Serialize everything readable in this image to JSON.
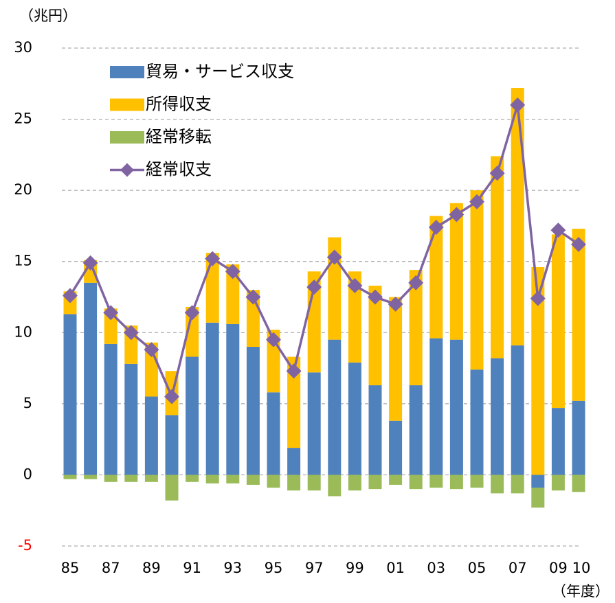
{
  "chart_data": {
    "type": "bar",
    "y_label": "（兆円）",
    "x_label": "（年度）",
    "categories": [
      "85",
      null,
      "87",
      null,
      "89",
      null,
      "91",
      null,
      "93",
      null,
      "95",
      null,
      "97",
      null,
      "99",
      null,
      "01",
      null,
      "03",
      null,
      "05",
      null,
      "07",
      null,
      "09",
      "10"
    ],
    "series": [
      {
        "name": "貿易・サービス収支",
        "color": "#4f81bd",
        "values": [
          11.3,
          13.5,
          9.2,
          7.8,
          5.5,
          4.2,
          8.3,
          10.7,
          10.6,
          9.0,
          5.8,
          1.9,
          7.2,
          9.5,
          7.9,
          6.3,
          3.8,
          6.3,
          9.6,
          9.5,
          7.4,
          8.2,
          9.1,
          -0.9,
          4.7,
          5.2
        ]
      },
      {
        "name": "所得収支",
        "color": "#ffc000",
        "values": [
          1.6,
          1.6,
          2.5,
          2.7,
          3.8,
          3.1,
          3.5,
          4.9,
          4.2,
          4.0,
          4.4,
          6.4,
          7.1,
          7.2,
          6.4,
          7.0,
          8.7,
          8.1,
          8.6,
          9.6,
          12.6,
          14.2,
          18.1,
          14.6,
          12.2,
          12.1
        ]
      },
      {
        "name": "経常移転",
        "color": "#9bbb59",
        "values": [
          -0.3,
          -0.3,
          -0.5,
          -0.5,
          -0.5,
          -1.8,
          -0.5,
          -0.6,
          -0.6,
          -0.7,
          -0.9,
          -1.1,
          -1.1,
          -1.5,
          -1.1,
          -1.0,
          -0.7,
          -1.0,
          -0.9,
          -1.0,
          -0.9,
          -1.3,
          -1.3,
          -1.4,
          -1.1,
          -1.2
        ]
      },
      {
        "name": "経常収支",
        "color": "#8064a2",
        "type": "line",
        "values": [
          12.6,
          14.9,
          11.4,
          10.0,
          8.8,
          5.5,
          11.4,
          15.2,
          14.3,
          12.5,
          9.5,
          7.3,
          13.2,
          15.3,
          13.3,
          12.5,
          12.0,
          13.5,
          17.4,
          18.3,
          19.2,
          21.2,
          26.0,
          12.4,
          17.2,
          16.2
        ]
      }
    ],
    "stacked": true,
    "ylim": [
      -5,
      30
    ],
    "yticks": [
      -5,
      0,
      5,
      10,
      15,
      20,
      25,
      30
    ],
    "negative_tick_color": "#ff0000",
    "grid": true,
    "legend": "upper-left"
  }
}
